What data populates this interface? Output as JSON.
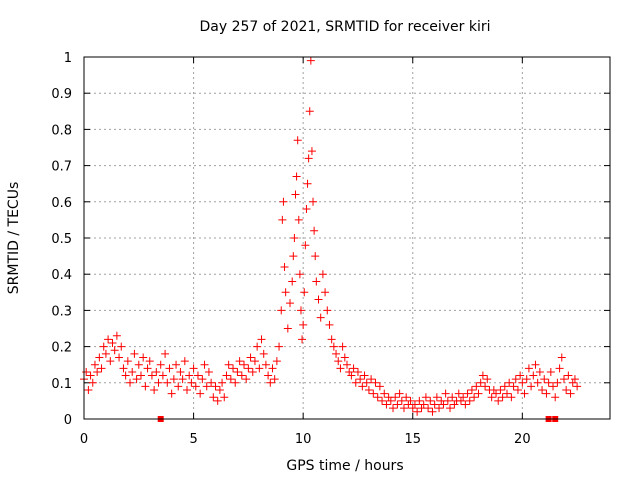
{
  "chart_data": {
    "type": "scatter",
    "title": "Day 257 of 2021, SRMTID for receiver kiri",
    "xlabel": "GPS time / hours",
    "ylabel": "SRMTID / TECUs",
    "xlim": [
      0,
      24
    ],
    "ylim": [
      0,
      1
    ],
    "xticks": [
      "0",
      "5",
      "10",
      "15",
      "20"
    ],
    "yticks": [
      "0",
      "0.1",
      "0.2",
      "0.3",
      "0.4",
      "0.5",
      "0.6",
      "0.7",
      "0.8",
      "0.9",
      "1"
    ],
    "grid": true,
    "marker": "+",
    "series": [
      {
        "name": "SRMTID",
        "color": "#ff0000",
        "points": [
          [
            0.0,
            0.11
          ],
          [
            0.1,
            0.13
          ],
          [
            0.2,
            0.08
          ],
          [
            0.3,
            0.12
          ],
          [
            0.4,
            0.1
          ],
          [
            0.5,
            0.15
          ],
          [
            0.6,
            0.13
          ],
          [
            0.7,
            0.17
          ],
          [
            0.8,
            0.14
          ],
          [
            0.9,
            0.2
          ],
          [
            1.0,
            0.18
          ],
          [
            1.1,
            0.22
          ],
          [
            1.2,
            0.16
          ],
          [
            1.3,
            0.21
          ],
          [
            1.4,
            0.19
          ],
          [
            1.5,
            0.23
          ],
          [
            1.6,
            0.17
          ],
          [
            1.7,
            0.2
          ],
          [
            1.8,
            0.14
          ],
          [
            1.9,
            0.12
          ],
          [
            2.0,
            0.16
          ],
          [
            2.1,
            0.1
          ],
          [
            2.2,
            0.13
          ],
          [
            2.3,
            0.18
          ],
          [
            2.4,
            0.11
          ],
          [
            2.5,
            0.15
          ],
          [
            2.6,
            0.12
          ],
          [
            2.7,
            0.17
          ],
          [
            2.8,
            0.09
          ],
          [
            2.9,
            0.14
          ],
          [
            3.0,
            0.16
          ],
          [
            3.1,
            0.12
          ],
          [
            3.2,
            0.08
          ],
          [
            3.3,
            0.13
          ],
          [
            3.4,
            0.1
          ],
          [
            3.5,
            0.15
          ],
          [
            3.6,
            0.12
          ],
          [
            3.7,
            0.18
          ],
          [
            3.8,
            0.1
          ],
          [
            3.9,
            0.14
          ],
          [
            4.0,
            0.07
          ],
          [
            4.1,
            0.11
          ],
          [
            4.2,
            0.15
          ],
          [
            4.3,
            0.09
          ],
          [
            4.4,
            0.13
          ],
          [
            4.5,
            0.11
          ],
          [
            4.6,
            0.16
          ],
          [
            4.7,
            0.08
          ],
          [
            4.8,
            0.12
          ],
          [
            4.9,
            0.1
          ],
          [
            5.0,
            0.14
          ],
          [
            5.1,
            0.09
          ],
          [
            5.2,
            0.12
          ],
          [
            5.3,
            0.07
          ],
          [
            5.4,
            0.11
          ],
          [
            5.5,
            0.15
          ],
          [
            5.6,
            0.09
          ],
          [
            5.7,
            0.13
          ],
          [
            5.8,
            0.1
          ],
          [
            5.9,
            0.06
          ],
          [
            6.0,
            0.09
          ],
          [
            6.1,
            0.05
          ],
          [
            6.2,
            0.08
          ],
          [
            6.3,
            0.1
          ],
          [
            6.4,
            0.06
          ],
          [
            6.5,
            0.12
          ],
          [
            6.6,
            0.15
          ],
          [
            6.7,
            0.11
          ],
          [
            6.8,
            0.14
          ],
          [
            6.9,
            0.1
          ],
          [
            7.0,
            0.13
          ],
          [
            7.1,
            0.16
          ],
          [
            7.2,
            0.12
          ],
          [
            7.3,
            0.15
          ],
          [
            7.4,
            0.11
          ],
          [
            7.5,
            0.14
          ],
          [
            7.6,
            0.17
          ],
          [
            7.7,
            0.13
          ],
          [
            7.8,
            0.16
          ],
          [
            7.9,
            0.2
          ],
          [
            8.0,
            0.14
          ],
          [
            8.1,
            0.22
          ],
          [
            8.2,
            0.18
          ],
          [
            8.3,
            0.15
          ],
          [
            8.4,
            0.12
          ],
          [
            8.5,
            0.1
          ],
          [
            8.6,
            0.14
          ],
          [
            8.7,
            0.11
          ],
          [
            8.8,
            0.16
          ],
          [
            8.9,
            0.2
          ],
          [
            9.0,
            0.3
          ],
          [
            9.05,
            0.55
          ],
          [
            9.1,
            0.6
          ],
          [
            9.15,
            0.42
          ],
          [
            9.2,
            0.35
          ],
          [
            9.3,
            0.25
          ],
          [
            9.4,
            0.32
          ],
          [
            9.5,
            0.38
          ],
          [
            9.55,
            0.45
          ],
          [
            9.6,
            0.5
          ],
          [
            9.65,
            0.62
          ],
          [
            9.7,
            0.67
          ],
          [
            9.75,
            0.77
          ],
          [
            9.8,
            0.55
          ],
          [
            9.85,
            0.4
          ],
          [
            9.9,
            0.3
          ],
          [
            9.95,
            0.22
          ],
          [
            10.0,
            0.26
          ],
          [
            10.05,
            0.35
          ],
          [
            10.1,
            0.48
          ],
          [
            10.15,
            0.58
          ],
          [
            10.2,
            0.65
          ],
          [
            10.25,
            0.72
          ],
          [
            10.3,
            0.85
          ],
          [
            10.35,
            0.99
          ],
          [
            10.4,
            0.74
          ],
          [
            10.45,
            0.6
          ],
          [
            10.5,
            0.52
          ],
          [
            10.55,
            0.45
          ],
          [
            10.6,
            0.38
          ],
          [
            10.7,
            0.33
          ],
          [
            10.8,
            0.28
          ],
          [
            10.9,
            0.4
          ],
          [
            11.0,
            0.35
          ],
          [
            11.1,
            0.3
          ],
          [
            11.2,
            0.26
          ],
          [
            11.3,
            0.22
          ],
          [
            11.4,
            0.2
          ],
          [
            11.5,
            0.18
          ],
          [
            11.6,
            0.16
          ],
          [
            11.7,
            0.14
          ],
          [
            11.8,
            0.2
          ],
          [
            11.9,
            0.17
          ],
          [
            12.0,
            0.15
          ],
          [
            12.1,
            0.13
          ],
          [
            12.2,
            0.12
          ],
          [
            12.3,
            0.14
          ],
          [
            12.4,
            0.1
          ],
          [
            12.5,
            0.13
          ],
          [
            12.6,
            0.11
          ],
          [
            12.7,
            0.09
          ],
          [
            12.8,
            0.12
          ],
          [
            12.9,
            0.1
          ],
          [
            13.0,
            0.08
          ],
          [
            13.1,
            0.11
          ],
          [
            13.2,
            0.07
          ],
          [
            13.3,
            0.1
          ],
          [
            13.4,
            0.06
          ],
          [
            13.5,
            0.09
          ],
          [
            13.6,
            0.05
          ],
          [
            13.7,
            0.07
          ],
          [
            13.8,
            0.04
          ],
          [
            13.9,
            0.06
          ],
          [
            14.0,
            0.05
          ],
          [
            14.1,
            0.03
          ],
          [
            14.2,
            0.06
          ],
          [
            14.3,
            0.04
          ],
          [
            14.4,
            0.07
          ],
          [
            14.5,
            0.05
          ],
          [
            14.6,
            0.03
          ],
          [
            14.7,
            0.06
          ],
          [
            14.8,
            0.04
          ],
          [
            14.9,
            0.05
          ],
          [
            15.0,
            0.03
          ],
          [
            15.1,
            0.04
          ],
          [
            15.2,
            0.02
          ],
          [
            15.3,
            0.05
          ],
          [
            15.4,
            0.03
          ],
          [
            15.5,
            0.04
          ],
          [
            15.6,
            0.06
          ],
          [
            15.7,
            0.03
          ],
          [
            15.8,
            0.05
          ],
          [
            15.9,
            0.02
          ],
          [
            16.0,
            0.04
          ],
          [
            16.1,
            0.06
          ],
          [
            16.2,
            0.03
          ],
          [
            16.3,
            0.05
          ],
          [
            16.4,
            0.04
          ],
          [
            16.5,
            0.07
          ],
          [
            16.6,
            0.05
          ],
          [
            16.7,
            0.03
          ],
          [
            16.8,
            0.06
          ],
          [
            16.9,
            0.04
          ],
          [
            17.0,
            0.05
          ],
          [
            17.1,
            0.07
          ],
          [
            17.2,
            0.05
          ],
          [
            17.3,
            0.06
          ],
          [
            17.4,
            0.04
          ],
          [
            17.5,
            0.07
          ],
          [
            17.6,
            0.05
          ],
          [
            17.7,
            0.08
          ],
          [
            17.8,
            0.06
          ],
          [
            17.9,
            0.09
          ],
          [
            18.0,
            0.07
          ],
          [
            18.1,
            0.1
          ],
          [
            18.2,
            0.12
          ],
          [
            18.3,
            0.09
          ],
          [
            18.4,
            0.11
          ],
          [
            18.5,
            0.08
          ],
          [
            18.6,
            0.06
          ],
          [
            18.7,
            0.08
          ],
          [
            18.8,
            0.07
          ],
          [
            18.9,
            0.05
          ],
          [
            19.0,
            0.08
          ],
          [
            19.1,
            0.06
          ],
          [
            19.2,
            0.09
          ],
          [
            19.3,
            0.07
          ],
          [
            19.4,
            0.1
          ],
          [
            19.5,
            0.06
          ],
          [
            19.6,
            0.09
          ],
          [
            19.7,
            0.11
          ],
          [
            19.8,
            0.08
          ],
          [
            19.9,
            0.12
          ],
          [
            20.0,
            0.1
          ],
          [
            20.1,
            0.07
          ],
          [
            20.2,
            0.11
          ],
          [
            20.3,
            0.14
          ],
          [
            20.4,
            0.09
          ],
          [
            20.5,
            0.12
          ],
          [
            20.6,
            0.15
          ],
          [
            20.7,
            0.1
          ],
          [
            20.8,
            0.13
          ],
          [
            20.9,
            0.08
          ],
          [
            21.0,
            0.11
          ],
          [
            21.1,
            0.07
          ],
          [
            21.2,
            0.1
          ],
          [
            21.3,
            0.13
          ],
          [
            21.4,
            0.09
          ],
          [
            21.5,
            0.06
          ],
          [
            21.6,
            0.1
          ],
          [
            21.7,
            0.14
          ],
          [
            21.8,
            0.17
          ],
          [
            21.9,
            0.11
          ],
          [
            22.0,
            0.08
          ],
          [
            22.1,
            0.12
          ],
          [
            22.2,
            0.07
          ],
          [
            22.3,
            0.1
          ],
          [
            22.4,
            0.11
          ],
          [
            22.5,
            0.09
          ]
        ]
      }
    ],
    "markers_at_zero": [
      3.5,
      21.2,
      21.5
    ]
  }
}
